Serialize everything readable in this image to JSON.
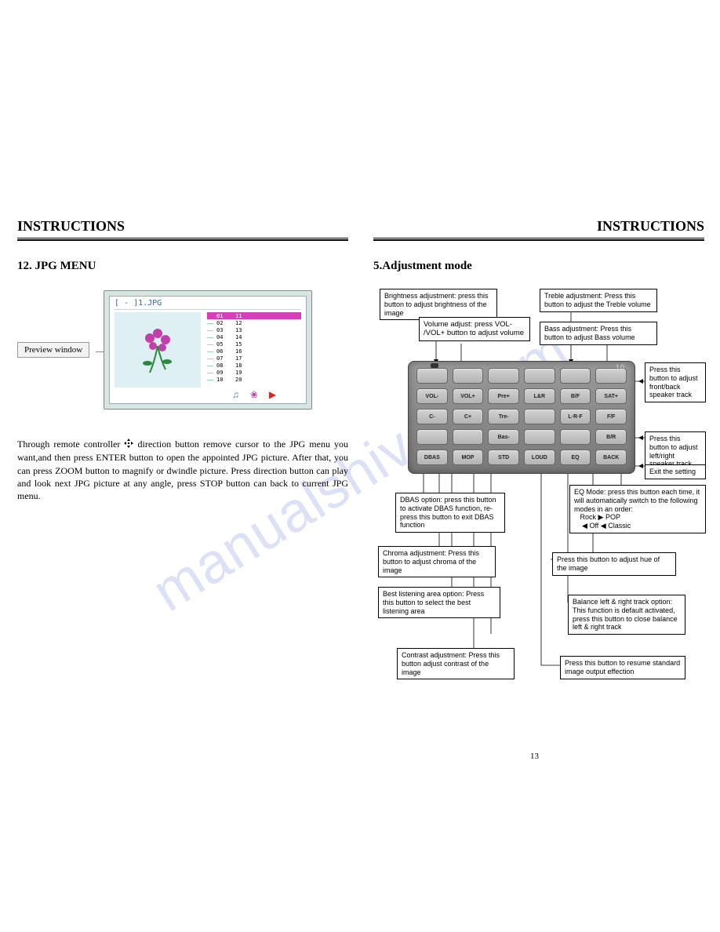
{
  "header": {
    "title": "INSTRUCTIONS"
  },
  "left": {
    "section": "12. JPG MENU",
    "preview_label": "Preview window",
    "tv_title": "[ - ]1.JPG",
    "list_rows": [
      {
        "a": "01",
        "b": "11",
        "hl": true
      },
      {
        "a": "02",
        "b": "12"
      },
      {
        "a": "03",
        "b": "13"
      },
      {
        "a": "04",
        "b": "14"
      },
      {
        "a": "05",
        "b": "15"
      },
      {
        "a": "06",
        "b": "16"
      },
      {
        "a": "07",
        "b": "17"
      },
      {
        "a": "08",
        "b": "18"
      },
      {
        "a": "09",
        "b": "19"
      },
      {
        "a": "10",
        "b": "20"
      }
    ],
    "body": "Through remote controller   direction button remove cursor to the JPG menu you want,and then press ENTER button to open the appointed JPG picture. After that, you can press ZOOM button to magnify or dwindle picture. Press direction button can play and look next JPG picture at any angle, press STOP button can back to current JPG menu."
  },
  "right": {
    "section": "5.Adjustment mode",
    "remote_label": "10",
    "buttons": [
      [
        "",
        "",
        "",
        "",
        "",
        ""
      ],
      [
        "VOL-",
        "VOL+",
        "Pre+",
        "L&R",
        "B/F",
        "SAT+"
      ],
      [
        "C-",
        "C+",
        "Tre-",
        "",
        "L·R·F",
        "F/F"
      ],
      [
        "",
        "",
        "Bas-",
        "",
        "",
        "B/R"
      ],
      [
        "DBAS",
        "MOP",
        "STD",
        "LOUD",
        "EQ",
        "BACK"
      ]
    ],
    "callouts": {
      "brightness": "Brightness adjustment: press this button to adjust brightness of the image",
      "volume": "Volume adjust: press VOL- /VOL+ button to adjust volume",
      "treble": "Treble adjustment: Press this button to adjust the Treble volume",
      "bass": "Bass adjustment: Press this button to adjust Bass volume",
      "frontback": "Press this button to adjust front/back speaker track",
      "leftright": "Press this button to adjust left/right speaker track",
      "exit": "Exit the setting",
      "eq": "EQ Mode: press this button each time, it will automatically switch to the following modes in an order:",
      "eq_rock": "Rock",
      "eq_pop": "POP",
      "eq_off": "Off",
      "eq_classic": "Classic",
      "hue": "Press this button to adjust hue of the image",
      "balance": "Balance left & right track option: This function is default activated, press this button to close balance left & right track",
      "resume": "Press this button to resume standard image output effection",
      "dbas": "DBAS option: press this button to activate DBAS function, re-press this button to exit DBAS function",
      "chroma": "Chroma adjustment: Press this button to adjust chroma of the image",
      "listening": "Best listening area option: Press this button to select the best listening area",
      "contrast": "Contrast adjustment: Press this button adjust contrast of the image"
    },
    "page_number": "13"
  },
  "watermark": "manualshiv….com",
  "colors": {
    "tv_bg": "#d9e6e0",
    "preview_bg": "#dff0f4",
    "highlight": "#d63fb9",
    "watermark": "rgba(60,90,200,0.18)"
  }
}
